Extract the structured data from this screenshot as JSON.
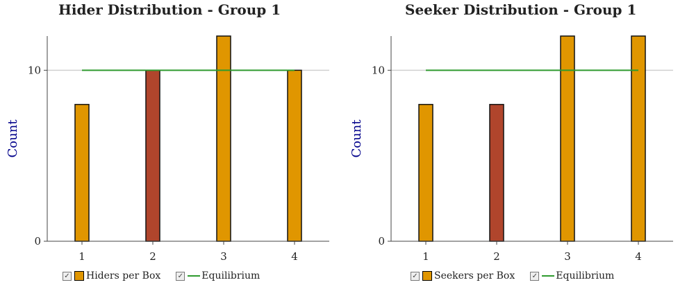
{
  "chart_data": [
    {
      "type": "bar",
      "title": "Hider Distribution - Group 1",
      "ylabel": "Count",
      "xlabel": "",
      "categories": [
        "1",
        "2",
        "3",
        "4"
      ],
      "ylim": [
        0,
        12
      ],
      "yticks": [
        0,
        10
      ],
      "series": [
        {
          "name": "Hiders per Box",
          "values": [
            8,
            10,
            12,
            10
          ],
          "colors": [
            "#e09600",
            "#b0452c",
            "#e09600",
            "#e09600"
          ]
        }
      ],
      "lines": [
        {
          "name": "Equilibrium",
          "y": 10,
          "x_range": [
            "1",
            "4"
          ],
          "color": "#2e9a2e"
        }
      ],
      "grid": "horizontal-at-ticks",
      "legend_placement": "bottom",
      "legend": [
        {
          "label": "Hiders per Box",
          "kind": "bar",
          "color": "#e09600",
          "checked": "✓"
        },
        {
          "label": "Equilibrium",
          "kind": "line",
          "color": "#2e9a2e",
          "checked": "✓"
        }
      ]
    },
    {
      "type": "bar",
      "title": "Seeker Distribution - Group 1",
      "ylabel": "Count",
      "xlabel": "",
      "categories": [
        "1",
        "2",
        "3",
        "4"
      ],
      "ylim": [
        0,
        12
      ],
      "yticks": [
        0,
        10
      ],
      "series": [
        {
          "name": "Seekers per Box",
          "values": [
            8,
            8,
            12,
            12
          ],
          "colors": [
            "#e09600",
            "#b0452c",
            "#e09600",
            "#e09600"
          ]
        }
      ],
      "lines": [
        {
          "name": "Equilibrium",
          "y": 10,
          "x_range": [
            "1",
            "4"
          ],
          "color": "#2e9a2e"
        }
      ],
      "grid": "horizontal-at-ticks",
      "legend_placement": "bottom",
      "legend": [
        {
          "label": "Seekers per Box",
          "kind": "bar",
          "color": "#e09600",
          "checked": "✓"
        },
        {
          "label": "Equilibrium",
          "kind": "line",
          "color": "#2e9a2e",
          "checked": "✓"
        }
      ]
    }
  ],
  "style": {
    "axis_label_color": "#00008b",
    "gridline_color": "#d0d0d0",
    "axis_color": "#444444"
  }
}
